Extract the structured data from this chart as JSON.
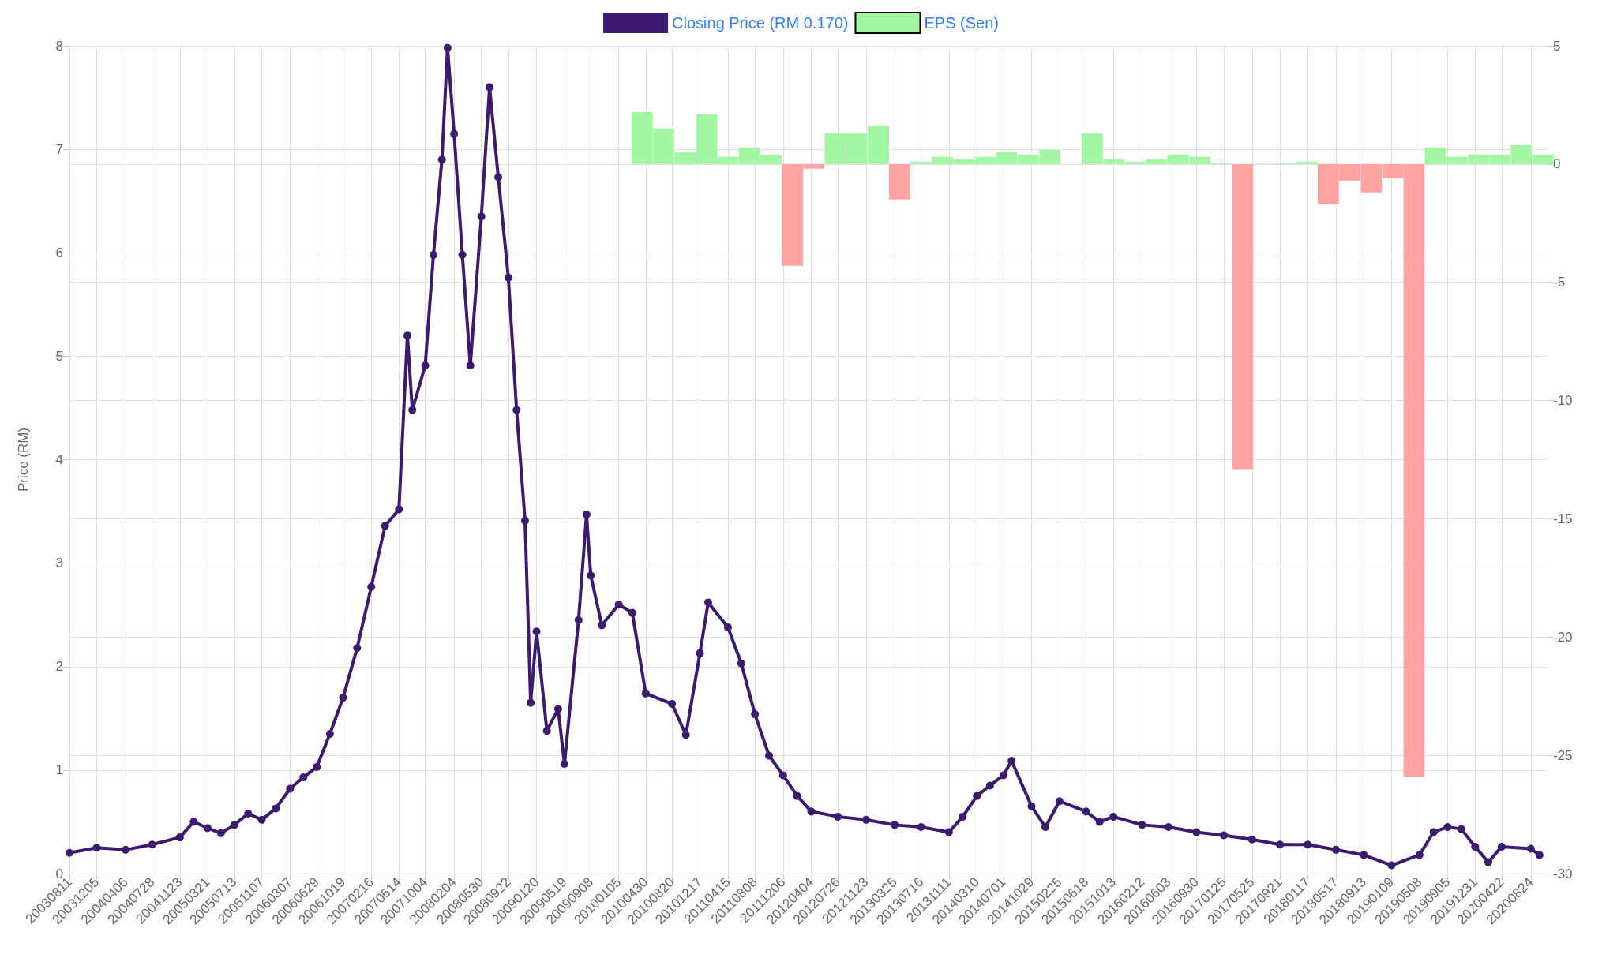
{
  "chart_data": {
    "type": "line",
    "ylabel": "Price (RM)",
    "legend": "top",
    "grid": true,
    "marker": "circle",
    "line_style": "solid",
    "xlim": [
      "2003-08-11",
      "2020-10-31"
    ],
    "xticks": [
      {
        "value": "2003-08-11",
        "label": "20030811"
      },
      {
        "value": "2003-12-05",
        "label": "20031205"
      },
      {
        "value": "2004-04-06",
        "label": "20040406"
      },
      {
        "value": "2004-07-28",
        "label": "20040728"
      },
      {
        "value": "2004-11-23",
        "label": "20041123"
      },
      {
        "value": "2005-03-21",
        "label": "20050321"
      },
      {
        "value": "2005-07-13",
        "label": "20050713"
      },
      {
        "value": "2005-11-07",
        "label": "20051107"
      },
      {
        "value": "2006-03-07",
        "label": "20060307"
      },
      {
        "value": "2006-06-29",
        "label": "20060629"
      },
      {
        "value": "2006-10-19",
        "label": "20061019"
      },
      {
        "value": "2007-02-16",
        "label": "20070216"
      },
      {
        "value": "2007-06-14",
        "label": "20070614"
      },
      {
        "value": "2007-10-04",
        "label": "20071004"
      },
      {
        "value": "2008-02-04",
        "label": "20080204"
      },
      {
        "value": "2008-05-30",
        "label": "20080530"
      },
      {
        "value": "2008-09-22",
        "label": "20080922"
      },
      {
        "value": "2009-01-20",
        "label": "20090120"
      },
      {
        "value": "2009-05-19",
        "label": "20090519"
      },
      {
        "value": "2009-09-08",
        "label": "20090908"
      },
      {
        "value": "2010-01-05",
        "label": "20100105"
      },
      {
        "value": "2010-04-30",
        "label": "20100430"
      },
      {
        "value": "2010-08-20",
        "label": "20100820"
      },
      {
        "value": "2010-12-17",
        "label": "20101217"
      },
      {
        "value": "2011-04-15",
        "label": "20110415"
      },
      {
        "value": "2011-08-08",
        "label": "20110808"
      },
      {
        "value": "2011-12-06",
        "label": "20111206"
      },
      {
        "value": "2012-04-04",
        "label": "20120404"
      },
      {
        "value": "2012-07-26",
        "label": "20120726"
      },
      {
        "value": "2012-11-23",
        "label": "20121123"
      },
      {
        "value": "2013-03-25",
        "label": "20130325"
      },
      {
        "value": "2013-07-16",
        "label": "20130716"
      },
      {
        "value": "2013-11-11",
        "label": "20131111"
      },
      {
        "value": "2014-03-10",
        "label": "20140310"
      },
      {
        "value": "2014-07-01",
        "label": "20140701"
      },
      {
        "value": "2014-10-29",
        "label": "20141029"
      },
      {
        "value": "2015-02-25",
        "label": "20150225"
      },
      {
        "value": "2015-06-18",
        "label": "20150618"
      },
      {
        "value": "2015-10-13",
        "label": "20151013"
      },
      {
        "value": "2016-02-12",
        "label": "20160212"
      },
      {
        "value": "2016-06-03",
        "label": "20160603"
      },
      {
        "value": "2016-09-30",
        "label": "20160930"
      },
      {
        "value": "2017-01-25",
        "label": "20170125"
      },
      {
        "value": "2017-05-25",
        "label": "20170525"
      },
      {
        "value": "2017-09-21",
        "label": "20170921"
      },
      {
        "value": "2018-01-17",
        "label": "20180117"
      },
      {
        "value": "2018-05-17",
        "label": "20180517"
      },
      {
        "value": "2018-09-13",
        "label": "20180913"
      },
      {
        "value": "2019-01-09",
        "label": "20190109"
      },
      {
        "value": "2019-05-08",
        "label": "20190508"
      },
      {
        "value": "2019-09-05",
        "label": "20190905"
      },
      {
        "value": "2019-12-31",
        "label": "20191231"
      },
      {
        "value": "2020-04-22",
        "label": "20200422"
      },
      {
        "value": "2020-08-24",
        "label": "20200824"
      }
    ],
    "ylim": [
      0,
      8
    ],
    "yticks": [
      0,
      1,
      2,
      3,
      4,
      5,
      6,
      7,
      8
    ],
    "y2lim": [
      -30,
      5
    ],
    "y2ticks": [
      -30,
      -25,
      -20,
      -15,
      -10,
      -5,
      0,
      5
    ],
    "series": [
      {
        "name": "Closing Price (RM 0.170)",
        "color": "#3d1a70",
        "x": [
          "2003-08-11",
          "2003-12-05",
          "2004-04-06",
          "2004-07-28",
          "2004-11-23",
          "2005-01-21",
          "2005-03-21",
          "2005-05-17",
          "2005-07-13",
          "2005-09-10",
          "2005-11-07",
          "2006-01-06",
          "2006-03-07",
          "2006-05-03",
          "2006-06-29",
          "2006-08-24",
          "2006-10-19",
          "2006-12-18",
          "2007-02-16",
          "2007-04-16",
          "2007-06-14",
          "2007-07-20",
          "2007-08-10",
          "2007-10-04",
          "2007-11-08",
          "2007-12-14",
          "2008-01-07",
          "2008-02-04",
          "2008-03-10",
          "2008-04-13",
          "2008-05-30",
          "2008-07-04",
          "2008-08-10",
          "2008-09-22",
          "2008-10-27",
          "2008-12-02",
          "2008-12-26",
          "2009-01-20",
          "2009-03-05",
          "2009-04-22",
          "2009-05-19",
          "2009-07-18",
          "2009-08-21",
          "2009-09-08",
          "2009-10-25",
          "2010-01-05",
          "2010-03-04",
          "2010-04-30",
          "2010-08-20",
          "2010-10-18",
          "2010-12-17",
          "2011-01-21",
          "2011-04-15",
          "2011-06-11",
          "2011-08-08",
          "2011-10-07",
          "2011-12-06",
          "2012-02-04",
          "2012-04-04",
          "2012-07-26",
          "2012-11-23",
          "2013-03-25",
          "2013-07-16",
          "2013-11-11",
          "2014-01-09",
          "2014-03-10",
          "2014-05-05",
          "2014-07-01",
          "2014-08-05",
          "2014-10-29",
          "2014-12-27",
          "2015-02-25",
          "2015-06-18",
          "2015-08-15",
          "2015-10-13",
          "2016-02-12",
          "2016-06-03",
          "2016-09-30",
          "2017-01-25",
          "2017-05-25",
          "2017-09-21",
          "2018-01-17",
          "2018-05-17",
          "2018-09-13",
          "2019-01-09",
          "2019-05-08",
          "2019-07-07",
          "2019-09-05",
          "2019-11-02",
          "2019-12-31",
          "2020-02-25",
          "2020-04-22",
          "2020-08-24",
          "2020-09-30"
        ],
        "values": [
          0.2,
          0.25,
          0.23,
          0.28,
          0.35,
          0.5,
          0.44,
          0.39,
          0.47,
          0.58,
          0.52,
          0.63,
          0.82,
          0.93,
          1.03,
          1.35,
          1.7,
          2.18,
          2.77,
          3.36,
          3.52,
          5.2,
          4.48,
          4.91,
          5.98,
          6.9,
          7.98,
          7.15,
          5.98,
          4.91,
          6.35,
          7.6,
          6.73,
          5.76,
          4.48,
          3.41,
          1.65,
          2.34,
          1.38,
          1.59,
          1.06,
          2.45,
          3.47,
          2.88,
          2.4,
          2.6,
          2.52,
          1.74,
          1.64,
          1.34,
          2.13,
          2.62,
          2.38,
          2.03,
          1.54,
          1.14,
          0.95,
          0.75,
          0.6,
          0.55,
          0.52,
          0.47,
          0.45,
          0.4,
          0.55,
          0.75,
          0.85,
          0.95,
          1.09,
          0.65,
          0.45,
          0.7,
          0.6,
          0.5,
          0.55,
          0.47,
          0.45,
          0.4,
          0.37,
          0.33,
          0.28,
          0.28,
          0.23,
          0.18,
          0.08,
          0.18,
          0.4,
          0.45,
          0.43,
          0.26,
          0.11,
          0.26,
          0.24,
          0.18
        ]
      },
      {
        "name": "EPS (Sen)",
        "type": "bar",
        "axis": "y2",
        "color": "#a3f7a3",
        "x": [
          "2010-04-15",
          "2010-07-15",
          "2010-10-15",
          "2011-01-15",
          "2011-04-15",
          "2011-07-15",
          "2011-10-15",
          "2012-01-15",
          "2012-04-15",
          "2012-07-15",
          "2012-10-15",
          "2013-01-15",
          "2013-04-15",
          "2013-07-15",
          "2013-10-15",
          "2014-01-15",
          "2014-04-15",
          "2014-07-15",
          "2014-10-15",
          "2015-01-15",
          "2015-04-15",
          "2015-07-15",
          "2015-10-15",
          "2016-01-15",
          "2016-04-15",
          "2016-07-15",
          "2016-10-15",
          "2017-01-15",
          "2017-04-15",
          "2017-07-15",
          "2017-10-15",
          "2018-01-15",
          "2018-04-15",
          "2018-07-15",
          "2018-10-15",
          "2019-01-15",
          "2019-04-15",
          "2019-07-15",
          "2019-10-15",
          "2020-01-15",
          "2020-04-15",
          "2020-07-15",
          "2020-10-15"
        ],
        "values": [
          2.2,
          1.5,
          0.5,
          2.1,
          0.3,
          0.7,
          0.4,
          -4.3,
          -0.2,
          1.3,
          1.3,
          1.6,
          -1.5,
          0.1,
          0.3,
          0.2,
          0.3,
          0.5,
          0.4,
          0.6,
          0,
          1.3,
          0.2,
          0.1,
          0.2,
          0.4,
          0.3,
          0.03,
          -12.9,
          0.02,
          0.03,
          0.1,
          -1.7,
          -0.7,
          -1.2,
          -0.6,
          -25.9,
          0.7,
          0.3,
          0.4,
          0.4,
          0.8,
          0.4
        ],
        "colors": [
          "#a3f7a3",
          "#a3f7a3",
          "#a3f7a3",
          "#a3f7a3",
          "#a3f7a3",
          "#a3f7a3",
          "#a3f7a3",
          "#ffa3a3",
          "#ffa3a3",
          "#a3f7a3",
          "#a3f7a3",
          "#a3f7a3",
          "#ffa3a3",
          "#a3f7a3",
          "#a3f7a3",
          "#a3f7a3",
          "#a3f7a3",
          "#a3f7a3",
          "#a3f7a3",
          "#a3f7a3",
          "#a3f7a3",
          "#a3f7a3",
          "#a3f7a3",
          "#a3f7a3",
          "#a3f7a3",
          "#a3f7a3",
          "#a3f7a3",
          "#a3f7a3",
          "#ffa3a3",
          "#a3f7a3",
          "#a3f7a3",
          "#a3f7a3",
          "#ffa3a3",
          "#ffa3a3",
          "#ffa3a3",
          "#ffa3a3",
          "#ffa3a3",
          "#a3f7a3",
          "#a3f7a3",
          "#a3f7a3",
          "#a3f7a3",
          "#a3f7a3",
          "#a3f7a3"
        ]
      }
    ]
  }
}
